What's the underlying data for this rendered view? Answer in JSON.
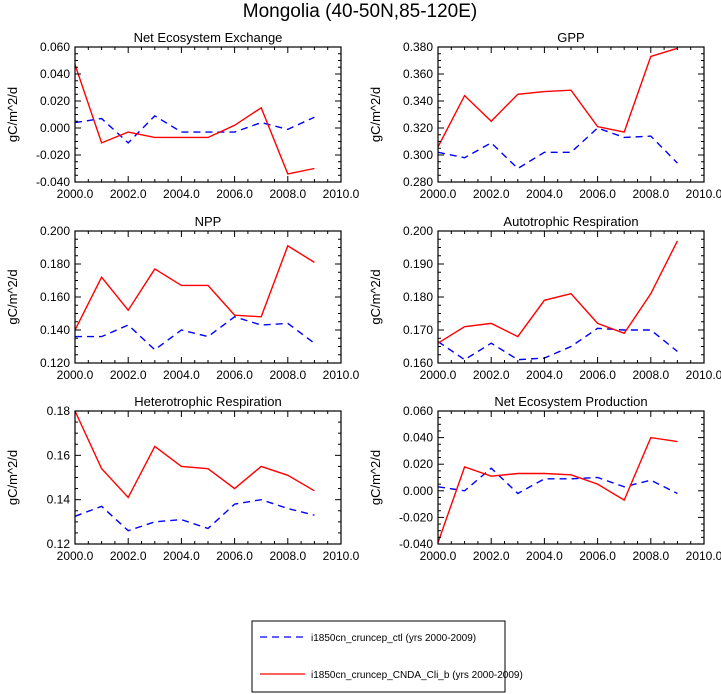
{
  "figure": {
    "title": "Mongolia (40-50N,85-120E)"
  },
  "legend": {
    "entries": [
      {
        "label": "i1850cn_cruncep_ctl (yrs 2000-2009)",
        "color": "#0000ff",
        "dash": true
      },
      {
        "label": "i1850cn_cruncep_CNDA_Cli_b (yrs 2000-2009)",
        "color": "#ff0000",
        "dash": false
      }
    ]
  },
  "chart_data": [
    {
      "type": "line",
      "title": "Net Ecosystem Exchange",
      "ylabel": "gC/m^2/d",
      "xlim": [
        2000,
        2010
      ],
      "ylim": [
        -0.04,
        0.06
      ],
      "xticks": [
        2000,
        2002,
        2004,
        2006,
        2008,
        2010
      ],
      "xtick_labels": [
        "2000.0",
        "2002.0",
        "2004.0",
        "2006.0",
        "2008.0",
        "2010.0"
      ],
      "yticks": [
        -0.04,
        -0.02,
        0.0,
        0.02,
        0.04,
        0.06
      ],
      "ytick_labels": [
        "-0.040",
        "-0.020",
        "0.000",
        "0.020",
        "0.040",
        "0.060"
      ],
      "x": [
        2000,
        2001,
        2002,
        2003,
        2004,
        2005,
        2006,
        2007,
        2008,
        2009
      ],
      "series": [
        {
          "name": "i1850cn_cruncep_ctl (yrs 2000-2009)",
          "color": "#0000ff",
          "dash": true,
          "values": [
            0.004,
            0.007,
            -0.011,
            0.009,
            -0.003,
            -0.003,
            -0.003,
            0.004,
            -0.001,
            0.008
          ]
        },
        {
          "name": "i1850cn_cruncep_CNDA_Cli_b (yrs 2000-2009)",
          "color": "#ff0000",
          "dash": false,
          "values": [
            0.047,
            -0.011,
            -0.003,
            -0.007,
            -0.007,
            -0.007,
            0.002,
            0.015,
            -0.034,
            -0.03
          ]
        }
      ]
    },
    {
      "type": "line",
      "title": "GPP",
      "ylabel": "gC/m^2/d",
      "xlim": [
        2000,
        2010
      ],
      "ylim": [
        0.28,
        0.38
      ],
      "xticks": [
        2000,
        2002,
        2004,
        2006,
        2008,
        2010
      ],
      "xtick_labels": [
        "2000.0",
        "2002.0",
        "2004.0",
        "2006.0",
        "2008.0",
        "2010.0"
      ],
      "yticks": [
        0.28,
        0.3,
        0.32,
        0.34,
        0.36,
        0.38
      ],
      "ytick_labels": [
        "0.280",
        "0.300",
        "0.320",
        "0.340",
        "0.360",
        "0.380"
      ],
      "x": [
        2000,
        2001,
        2002,
        2003,
        2004,
        2005,
        2006,
        2007,
        2008,
        2009
      ],
      "series": [
        {
          "name": "i1850cn_cruncep_ctl (yrs 2000-2009)",
          "color": "#0000ff",
          "dash": true,
          "values": [
            0.302,
            0.298,
            0.309,
            0.29,
            0.302,
            0.302,
            0.32,
            0.313,
            0.314,
            0.294
          ]
        },
        {
          "name": "i1850cn_cruncep_CNDA_Cli_b (yrs 2000-2009)",
          "color": "#ff0000",
          "dash": false,
          "values": [
            0.306,
            0.344,
            0.325,
            0.345,
            0.347,
            0.348,
            0.321,
            0.317,
            0.373,
            0.379
          ]
        }
      ]
    },
    {
      "type": "line",
      "title": "NPP",
      "ylabel": "gC/m^2/d",
      "xlim": [
        2000,
        2010
      ],
      "ylim": [
        0.12,
        0.2
      ],
      "xticks": [
        2000,
        2002,
        2004,
        2006,
        2008,
        2010
      ],
      "xtick_labels": [
        "2000.0",
        "2002.0",
        "2004.0",
        "2006.0",
        "2008.0",
        "2010.0"
      ],
      "yticks": [
        0.12,
        0.14,
        0.16,
        0.18,
        0.2
      ],
      "ytick_labels": [
        "0.120",
        "0.140",
        "0.160",
        "0.180",
        "0.200"
      ],
      "x": [
        2000,
        2001,
        2002,
        2003,
        2004,
        2005,
        2006,
        2007,
        2008,
        2009
      ],
      "series": [
        {
          "name": "i1850cn_cruncep_ctl (yrs 2000-2009)",
          "color": "#0000ff",
          "dash": true,
          "values": [
            0.136,
            0.136,
            0.143,
            0.128,
            0.14,
            0.136,
            0.148,
            0.143,
            0.144,
            0.132
          ]
        },
        {
          "name": "i1850cn_cruncep_CNDA_Cli_b (yrs 2000-2009)",
          "color": "#ff0000",
          "dash": false,
          "values": [
            0.14,
            0.172,
            0.152,
            0.177,
            0.167,
            0.167,
            0.149,
            0.148,
            0.191,
            0.181
          ]
        }
      ]
    },
    {
      "type": "line",
      "title": "Autotrophic Respiration",
      "ylabel": "gC/m^2/d",
      "xlim": [
        2000,
        2010
      ],
      "ylim": [
        0.16,
        0.2
      ],
      "xticks": [
        2000,
        2002,
        2004,
        2006,
        2008,
        2010
      ],
      "xtick_labels": [
        "2000.0",
        "2002.0",
        "2004.0",
        "2006.0",
        "2008.0",
        "2010.0"
      ],
      "yticks": [
        0.16,
        0.17,
        0.18,
        0.19,
        0.2
      ],
      "ytick_labels": [
        "0.160",
        "0.170",
        "0.180",
        "0.190",
        "0.200"
      ],
      "x": [
        2000,
        2001,
        2002,
        2003,
        2004,
        2005,
        2006,
        2007,
        2008,
        2009
      ],
      "series": [
        {
          "name": "i1850cn_cruncep_ctl (yrs 2000-2009)",
          "color": "#0000ff",
          "dash": true,
          "values": [
            0.1665,
            0.161,
            0.166,
            0.161,
            0.1615,
            0.165,
            0.1705,
            0.17,
            0.17,
            0.1635
          ]
        },
        {
          "name": "i1850cn_cruncep_CNDA_Cli_b (yrs 2000-2009)",
          "color": "#ff0000",
          "dash": false,
          "values": [
            0.166,
            0.171,
            0.172,
            0.168,
            0.179,
            0.181,
            0.172,
            0.169,
            0.181,
            0.197
          ]
        }
      ]
    },
    {
      "type": "line",
      "title": "Heterotrophic Respiration",
      "ylabel": "gC/m^2/d",
      "xlim": [
        2000,
        2010
      ],
      "ylim": [
        0.12,
        0.18
      ],
      "xticks": [
        2000,
        2002,
        2004,
        2006,
        2008,
        2010
      ],
      "xtick_labels": [
        "2000.0",
        "2002.0",
        "2004.0",
        "2006.0",
        "2008.0",
        "2010.0"
      ],
      "yticks": [
        0.12,
        0.14,
        0.16,
        0.18
      ],
      "ytick_labels": [
        "0.12",
        "0.14",
        "0.16",
        "0.18"
      ],
      "x": [
        2000,
        2001,
        2002,
        2003,
        2004,
        2005,
        2006,
        2007,
        2008,
        2009
      ],
      "series": [
        {
          "name": "i1850cn_cruncep_ctl (yrs 2000-2009)",
          "color": "#0000ff",
          "dash": true,
          "values": [
            0.1325,
            0.137,
            0.126,
            0.13,
            0.131,
            0.127,
            0.138,
            0.14,
            0.136,
            0.133
          ]
        },
        {
          "name": "i1850cn_cruncep_CNDA_Cli_b (yrs 2000-2009)",
          "color": "#ff0000",
          "dash": false,
          "values": [
            0.18,
            0.154,
            0.141,
            0.164,
            0.155,
            0.154,
            0.145,
            0.155,
            0.151,
            0.144
          ]
        }
      ]
    },
    {
      "type": "line",
      "title": "Net Ecosystem Production",
      "ylabel": "gC/m^2/d",
      "xlim": [
        2000,
        2010
      ],
      "ylim": [
        -0.04,
        0.06
      ],
      "xticks": [
        2000,
        2002,
        2004,
        2006,
        2008,
        2010
      ],
      "xtick_labels": [
        "2000.0",
        "2002.0",
        "2004.0",
        "2006.0",
        "2008.0",
        "2010.0"
      ],
      "yticks": [
        -0.04,
        -0.02,
        0.0,
        0.02,
        0.04,
        0.06
      ],
      "ytick_labels": [
        "-0.040",
        "-0.020",
        "0.000",
        "0.020",
        "0.040",
        "0.060"
      ],
      "x": [
        2000,
        2001,
        2002,
        2003,
        2004,
        2005,
        2006,
        2007,
        2008,
        2009
      ],
      "series": [
        {
          "name": "i1850cn_cruncep_ctl (yrs 2000-2009)",
          "color": "#0000ff",
          "dash": true,
          "values": [
            0.003,
            0.0,
            0.017,
            -0.002,
            0.009,
            0.009,
            0.01,
            0.003,
            0.008,
            -0.002
          ]
        },
        {
          "name": "i1850cn_cruncep_CNDA_Cli_b (yrs 2000-2009)",
          "color": "#ff0000",
          "dash": false,
          "values": [
            -0.039,
            0.018,
            0.011,
            0.013,
            0.013,
            0.012,
            0.005,
            -0.007,
            0.04,
            0.037
          ]
        }
      ]
    }
  ]
}
